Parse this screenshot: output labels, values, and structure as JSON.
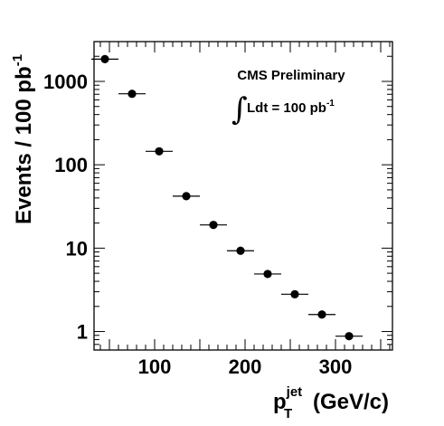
{
  "chart_data": {
    "type": "scatter",
    "title": "",
    "annotations": {
      "experiment": "CMS Preliminary",
      "luminosity_prefix": "Ldt = 100 pb",
      "luminosity_exponent": "-1"
    },
    "xlabel": {
      "base": "p",
      "superscript": "jet",
      "subscript": "T",
      "suffix": "(GeV/c)"
    },
    "ylabel": {
      "base": "Events / 100 pb",
      "superscript": "-1"
    },
    "xlim": [
      33,
      363
    ],
    "ylim": [
      0.6,
      3000
    ],
    "yscale": "log",
    "xticks": [
      "100",
      "200",
      "300"
    ],
    "yticks": [
      "1",
      "10",
      "100",
      "1000"
    ],
    "series": [
      {
        "marker": "filled-circle",
        "color": "#000000",
        "points": [
          {
            "x": 45,
            "xerr": 15,
            "y": 1850
          },
          {
            "x": 75,
            "xerr": 15,
            "y": 710
          },
          {
            "x": 105,
            "xerr": 15,
            "y": 145
          },
          {
            "x": 135,
            "xerr": 15,
            "y": 42
          },
          {
            "x": 165,
            "xerr": 15,
            "y": 19
          },
          {
            "x": 195,
            "xerr": 15,
            "y": 9.3
          },
          {
            "x": 225,
            "xerr": 15,
            "y": 4.9
          },
          {
            "x": 255,
            "xerr": 15,
            "y": 2.8
          },
          {
            "x": 285,
            "xerr": 15,
            "y": 1.6
          },
          {
            "x": 315,
            "xerr": 15,
            "y": 0.88
          }
        ]
      }
    ]
  }
}
